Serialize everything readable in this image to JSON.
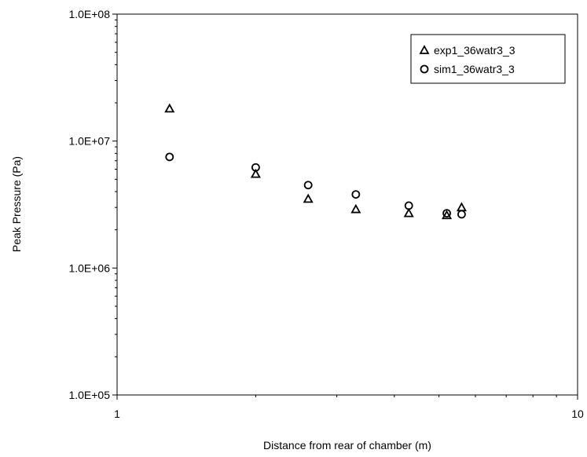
{
  "chart_data": {
    "type": "scatter",
    "xlabel": "Distance from rear of chamber (m)",
    "ylabel": "Peak Pressure (Pa)",
    "x_scale": "log",
    "y_scale": "log",
    "xlim": [
      1,
      10
    ],
    "ylim": [
      100000,
      100000000
    ],
    "x_ticks": [
      {
        "value": 1,
        "label": "1"
      },
      {
        "value": 10,
        "label": "10"
      }
    ],
    "y_ticks": [
      {
        "value": 100000,
        "label": "1.0E+05"
      },
      {
        "value": 1000000,
        "label": "1.0E+06"
      },
      {
        "value": 10000000,
        "label": "1.0E+07"
      },
      {
        "value": 100000000,
        "label": "1.0E+08"
      }
    ],
    "grid": false,
    "legend_position": "top-right",
    "series": [
      {
        "name": "exp1_36watr3_3",
        "marker": "triangle",
        "points": [
          {
            "x": 1.3,
            "y": 18000000
          },
          {
            "x": 2.0,
            "y": 5500000
          },
          {
            "x": 2.6,
            "y": 3500000
          },
          {
            "x": 3.3,
            "y": 2900000
          },
          {
            "x": 4.3,
            "y": 2700000
          },
          {
            "x": 5.2,
            "y": 2600000
          },
          {
            "x": 5.6,
            "y": 3000000
          }
        ]
      },
      {
        "name": "sim1_36watr3_3",
        "marker": "circle",
        "points": [
          {
            "x": 1.3,
            "y": 7500000
          },
          {
            "x": 2.0,
            "y": 6200000
          },
          {
            "x": 2.6,
            "y": 4500000
          },
          {
            "x": 3.3,
            "y": 3800000
          },
          {
            "x": 4.3,
            "y": 3100000
          },
          {
            "x": 5.2,
            "y": 2700000
          },
          {
            "x": 5.6,
            "y": 2650000
          }
        ]
      }
    ]
  }
}
